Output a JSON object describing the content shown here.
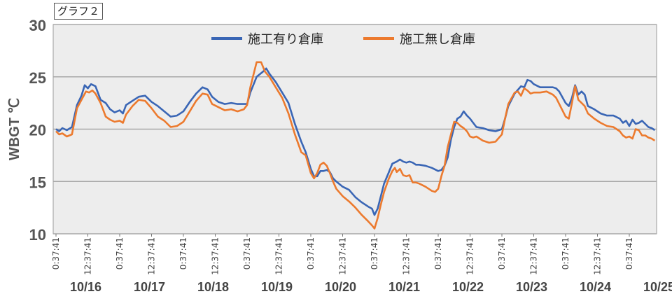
{
  "badge": "グラフ２",
  "chart_data": {
    "type": "line",
    "ylabel": "WBGT ℃",
    "ylim": [
      10,
      30
    ],
    "yticks": [
      10,
      15,
      20,
      25,
      30
    ],
    "grid": true,
    "legend": "top-center",
    "plot_bg": "#ededed",
    "tick_time_labels": [
      "0:37:41",
      "12:37:41"
    ],
    "x_dates": [
      "10/16",
      "10/17",
      "10/18",
      "10/19",
      "10/20",
      "10/21",
      "10/22",
      "10/23",
      "10/24",
      "10/25"
    ],
    "series": [
      {
        "name": "施工有り倉庫",
        "color": "#3a66b5",
        "points": [
          [
            0.0,
            20.0
          ],
          [
            0.05,
            19.8
          ],
          [
            0.1,
            20.1
          ],
          [
            0.17,
            19.9
          ],
          [
            0.25,
            20.2
          ],
          [
            0.33,
            22.3
          ],
          [
            0.4,
            23.2
          ],
          [
            0.45,
            24.2
          ],
          [
            0.5,
            23.9
          ],
          [
            0.55,
            24.3
          ],
          [
            0.62,
            24.1
          ],
          [
            0.7,
            22.8
          ],
          [
            0.78,
            22.5
          ],
          [
            0.85,
            21.9
          ],
          [
            0.92,
            21.6
          ],
          [
            1.0,
            21.8
          ],
          [
            1.05,
            21.5
          ],
          [
            1.1,
            22.3
          ],
          [
            1.2,
            22.7
          ],
          [
            1.3,
            23.1
          ],
          [
            1.4,
            23.2
          ],
          [
            1.5,
            22.6
          ],
          [
            1.6,
            22.2
          ],
          [
            1.7,
            21.7
          ],
          [
            1.8,
            21.2
          ],
          [
            1.9,
            21.3
          ],
          [
            2.0,
            21.7
          ],
          [
            2.1,
            22.6
          ],
          [
            2.2,
            23.4
          ],
          [
            2.3,
            24.0
          ],
          [
            2.38,
            23.8
          ],
          [
            2.45,
            23.1
          ],
          [
            2.55,
            22.6
          ],
          [
            2.65,
            22.4
          ],
          [
            2.75,
            22.5
          ],
          [
            2.85,
            22.4
          ],
          [
            2.95,
            22.4
          ],
          [
            3.0,
            22.4
          ],
          [
            3.05,
            23.5
          ],
          [
            3.15,
            25.0
          ],
          [
            3.25,
            25.5
          ],
          [
            3.3,
            25.8
          ],
          [
            3.35,
            25.3
          ],
          [
            3.45,
            24.5
          ],
          [
            3.55,
            23.5
          ],
          [
            3.65,
            22.5
          ],
          [
            3.75,
            20.5
          ],
          [
            3.85,
            18.8
          ],
          [
            3.92,
            17.8
          ],
          [
            4.0,
            16.2
          ],
          [
            4.05,
            15.5
          ],
          [
            4.1,
            15.5
          ],
          [
            4.15,
            16.0
          ],
          [
            4.2,
            16.0
          ],
          [
            4.25,
            16.1
          ],
          [
            4.3,
            15.9
          ],
          [
            4.35,
            15.3
          ],
          [
            4.4,
            15.0
          ],
          [
            4.5,
            14.5
          ],
          [
            4.6,
            14.2
          ],
          [
            4.7,
            13.5
          ],
          [
            4.8,
            13.0
          ],
          [
            4.9,
            12.6
          ],
          [
            4.96,
            12.4
          ],
          [
            5.0,
            11.8
          ],
          [
            5.05,
            12.4
          ],
          [
            5.1,
            13.6
          ],
          [
            5.15,
            14.8
          ],
          [
            5.22,
            15.8
          ],
          [
            5.28,
            16.7
          ],
          [
            5.35,
            16.9
          ],
          [
            5.4,
            17.1
          ],
          [
            5.45,
            16.9
          ],
          [
            5.5,
            16.8
          ],
          [
            5.55,
            16.9
          ],
          [
            5.6,
            16.8
          ],
          [
            5.65,
            16.6
          ],
          [
            5.7,
            16.6
          ],
          [
            5.8,
            16.5
          ],
          [
            5.9,
            16.3
          ],
          [
            6.0,
            16.0
          ],
          [
            6.05,
            16.1
          ],
          [
            6.1,
            16.5
          ],
          [
            6.15,
            17.3
          ],
          [
            6.2,
            19.0
          ],
          [
            6.25,
            20.2
          ],
          [
            6.3,
            21.0
          ],
          [
            6.35,
            21.2
          ],
          [
            6.4,
            21.7
          ],
          [
            6.45,
            21.3
          ],
          [
            6.5,
            21.0
          ],
          [
            6.55,
            20.6
          ],
          [
            6.6,
            20.2
          ],
          [
            6.7,
            20.1
          ],
          [
            6.8,
            19.9
          ],
          [
            6.9,
            19.8
          ],
          [
            7.0,
            20.0
          ],
          [
            7.05,
            21.0
          ],
          [
            7.1,
            22.2
          ],
          [
            7.2,
            23.4
          ],
          [
            7.3,
            24.1
          ],
          [
            7.35,
            24.0
          ],
          [
            7.4,
            24.7
          ],
          [
            7.45,
            24.6
          ],
          [
            7.5,
            24.3
          ],
          [
            7.6,
            24.0
          ],
          [
            7.7,
            24.0
          ],
          [
            7.8,
            24.0
          ],
          [
            7.85,
            23.9
          ],
          [
            7.9,
            23.6
          ],
          [
            8.0,
            22.5
          ],
          [
            8.05,
            22.2
          ],
          [
            8.1,
            23.0
          ],
          [
            8.15,
            24.2
          ],
          [
            8.2,
            23.3
          ],
          [
            8.25,
            23.6
          ],
          [
            8.3,
            23.3
          ],
          [
            8.35,
            22.2
          ],
          [
            8.45,
            21.9
          ],
          [
            8.55,
            21.5
          ],
          [
            8.65,
            21.3
          ],
          [
            8.75,
            21.3
          ],
          [
            8.85,
            21.0
          ],
          [
            8.9,
            20.6
          ],
          [
            8.95,
            20.8
          ],
          [
            9.0,
            20.3
          ],
          [
            9.05,
            20.9
          ],
          [
            9.1,
            20.5
          ],
          [
            9.15,
            20.6
          ],
          [
            9.2,
            20.8
          ],
          [
            9.25,
            20.5
          ],
          [
            9.3,
            20.2
          ],
          [
            9.35,
            20.1
          ],
          [
            9.4,
            19.9
          ]
        ]
      },
      {
        "name": "施工無し倉庫",
        "color": "#ec7a2e",
        "points": [
          [
            0.0,
            19.8
          ],
          [
            0.05,
            19.5
          ],
          [
            0.1,
            19.6
          ],
          [
            0.17,
            19.3
          ],
          [
            0.25,
            19.5
          ],
          [
            0.33,
            22.0
          ],
          [
            0.4,
            22.8
          ],
          [
            0.47,
            23.6
          ],
          [
            0.52,
            23.5
          ],
          [
            0.57,
            23.7
          ],
          [
            0.62,
            23.4
          ],
          [
            0.7,
            22.5
          ],
          [
            0.78,
            21.2
          ],
          [
            0.85,
            20.9
          ],
          [
            0.92,
            20.7
          ],
          [
            1.0,
            20.8
          ],
          [
            1.05,
            20.6
          ],
          [
            1.1,
            21.4
          ],
          [
            1.2,
            22.2
          ],
          [
            1.3,
            22.8
          ],
          [
            1.4,
            22.7
          ],
          [
            1.5,
            22.0
          ],
          [
            1.6,
            21.2
          ],
          [
            1.7,
            20.8
          ],
          [
            1.8,
            20.2
          ],
          [
            1.9,
            20.3
          ],
          [
            2.0,
            20.7
          ],
          [
            2.1,
            21.7
          ],
          [
            2.2,
            22.7
          ],
          [
            2.3,
            23.4
          ],
          [
            2.38,
            23.3
          ],
          [
            2.45,
            22.4
          ],
          [
            2.55,
            22.1
          ],
          [
            2.65,
            21.8
          ],
          [
            2.75,
            21.9
          ],
          [
            2.85,
            21.7
          ],
          [
            2.95,
            21.9
          ],
          [
            3.0,
            22.3
          ],
          [
            3.05,
            24.0
          ],
          [
            3.15,
            26.4
          ],
          [
            3.22,
            26.4
          ],
          [
            3.28,
            25.5
          ],
          [
            3.35,
            25.0
          ],
          [
            3.45,
            24.0
          ],
          [
            3.55,
            23.0
          ],
          [
            3.65,
            21.5
          ],
          [
            3.75,
            19.5
          ],
          [
            3.85,
            17.8
          ],
          [
            3.92,
            17.5
          ],
          [
            4.0,
            15.8
          ],
          [
            4.05,
            15.3
          ],
          [
            4.1,
            15.8
          ],
          [
            4.15,
            16.6
          ],
          [
            4.2,
            16.8
          ],
          [
            4.25,
            16.5
          ],
          [
            4.3,
            15.8
          ],
          [
            4.35,
            15.0
          ],
          [
            4.4,
            14.3
          ],
          [
            4.5,
            13.6
          ],
          [
            4.6,
            13.1
          ],
          [
            4.7,
            12.5
          ],
          [
            4.8,
            11.8
          ],
          [
            4.9,
            11.2
          ],
          [
            4.96,
            10.8
          ],
          [
            5.0,
            10.5
          ],
          [
            5.05,
            11.5
          ],
          [
            5.1,
            12.8
          ],
          [
            5.15,
            14.0
          ],
          [
            5.22,
            15.2
          ],
          [
            5.28,
            16.0
          ],
          [
            5.32,
            16.3
          ],
          [
            5.35,
            15.9
          ],
          [
            5.4,
            16.2
          ],
          [
            5.45,
            15.6
          ],
          [
            5.5,
            15.5
          ],
          [
            5.55,
            15.6
          ],
          [
            5.6,
            14.9
          ],
          [
            5.65,
            14.9
          ],
          [
            5.7,
            14.8
          ],
          [
            5.8,
            14.5
          ],
          [
            5.9,
            14.1
          ],
          [
            5.95,
            14.0
          ],
          [
            6.0,
            14.3
          ],
          [
            6.05,
            15.5
          ],
          [
            6.1,
            16.5
          ],
          [
            6.15,
            18.3
          ],
          [
            6.2,
            19.5
          ],
          [
            6.25,
            20.7
          ],
          [
            6.3,
            20.6
          ],
          [
            6.35,
            20.3
          ],
          [
            6.4,
            20.1
          ],
          [
            6.45,
            19.8
          ],
          [
            6.5,
            19.3
          ],
          [
            6.55,
            19.2
          ],
          [
            6.6,
            19.3
          ],
          [
            6.7,
            18.9
          ],
          [
            6.8,
            18.7
          ],
          [
            6.9,
            18.8
          ],
          [
            7.0,
            19.5
          ],
          [
            7.05,
            21.0
          ],
          [
            7.1,
            22.4
          ],
          [
            7.2,
            23.5
          ],
          [
            7.25,
            23.6
          ],
          [
            7.3,
            23.2
          ],
          [
            7.35,
            23.9
          ],
          [
            7.4,
            23.7
          ],
          [
            7.45,
            23.4
          ],
          [
            7.5,
            23.5
          ],
          [
            7.6,
            23.5
          ],
          [
            7.7,
            23.6
          ],
          [
            7.8,
            23.3
          ],
          [
            7.85,
            23.0
          ],
          [
            7.9,
            22.4
          ],
          [
            8.0,
            21.2
          ],
          [
            8.05,
            21.0
          ],
          [
            8.1,
            22.5
          ],
          [
            8.15,
            24.1
          ],
          [
            8.2,
            22.8
          ],
          [
            8.25,
            22.5
          ],
          [
            8.3,
            22.2
          ],
          [
            8.35,
            21.5
          ],
          [
            8.45,
            21.0
          ],
          [
            8.55,
            20.6
          ],
          [
            8.65,
            20.3
          ],
          [
            8.75,
            20.2
          ],
          [
            8.85,
            19.8
          ],
          [
            8.9,
            19.4
          ],
          [
            8.95,
            19.2
          ],
          [
            9.0,
            19.3
          ],
          [
            9.05,
            19.1
          ],
          [
            9.1,
            20.0
          ],
          [
            9.15,
            19.9
          ],
          [
            9.2,
            19.4
          ],
          [
            9.25,
            19.4
          ],
          [
            9.3,
            19.2
          ],
          [
            9.35,
            19.1
          ],
          [
            9.4,
            18.9
          ]
        ]
      }
    ]
  }
}
